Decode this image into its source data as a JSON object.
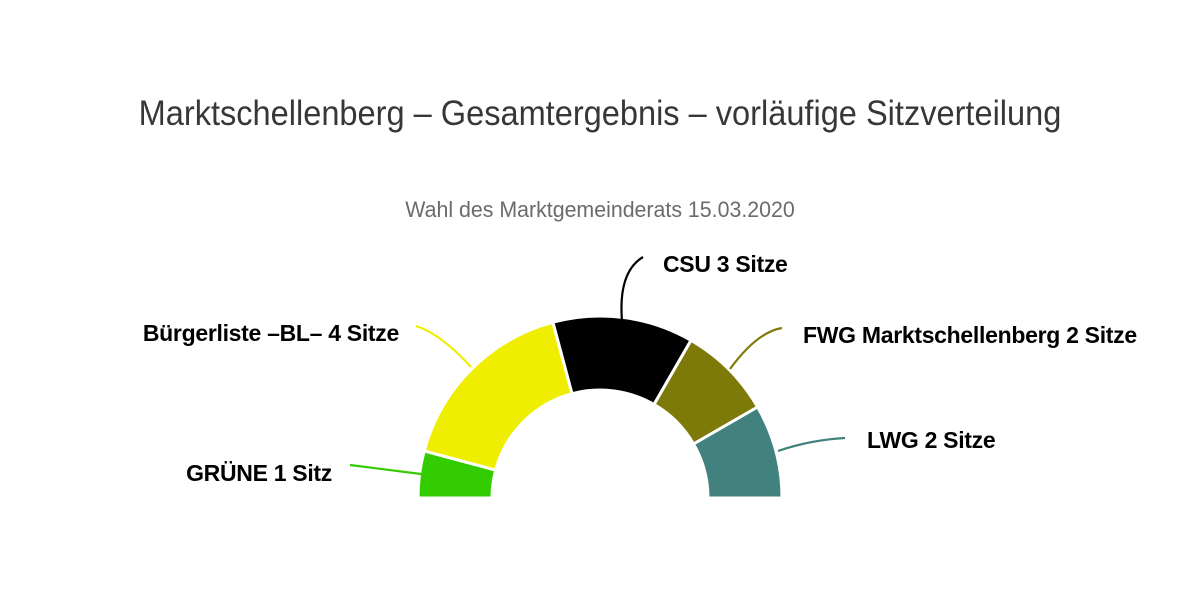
{
  "header": {
    "title": "Marktschellenberg – Gesamtergebnis – vorläufige Sitzverteilung",
    "subtitle": "Wahl des Marktgemeinderats 15.03.2020"
  },
  "chart_data": {
    "type": "pie",
    "variant": "half-donut-seat-distribution",
    "title": "Marktschellenberg – Gesamtergebnis – vorläufige Sitzverteilung",
    "subtitle": "Wahl des Marktgemeinderats 15.03.2020",
    "total_seats": 12,
    "start_angle_deg": -90,
    "end_angle_deg": 90,
    "inner_radius_ratio": 0.59,
    "legend": "none",
    "data_labels": "connector lines with party name and seat count",
    "slices": [
      {
        "party": "GRÜNE",
        "seats": 1,
        "label": "GRÜNE 1 Sitz",
        "color": "#33cc00"
      },
      {
        "party": "Bürgerliste –BL–",
        "seats": 4,
        "label": "Bürgerliste –BL– 4 Sitze",
        "color": "#f0ee00"
      },
      {
        "party": "CSU",
        "seats": 3,
        "label": "CSU 3 Sitze",
        "color": "#000000"
      },
      {
        "party": "FWG Marktschellenberg",
        "seats": 2,
        "label": "FWG Marktschellenberg 2 Sitze",
        "color": "#7d7a0a"
      },
      {
        "party": "LWG",
        "seats": 2,
        "label": "LWG 2 Sitze",
        "color": "#42827e"
      }
    ]
  },
  "colors": {
    "background": "#ffffff",
    "title_text": "#373737",
    "subtitle_text": "#6b6b6b",
    "label_text": "#000000",
    "slice_border": "#ffffff"
  }
}
